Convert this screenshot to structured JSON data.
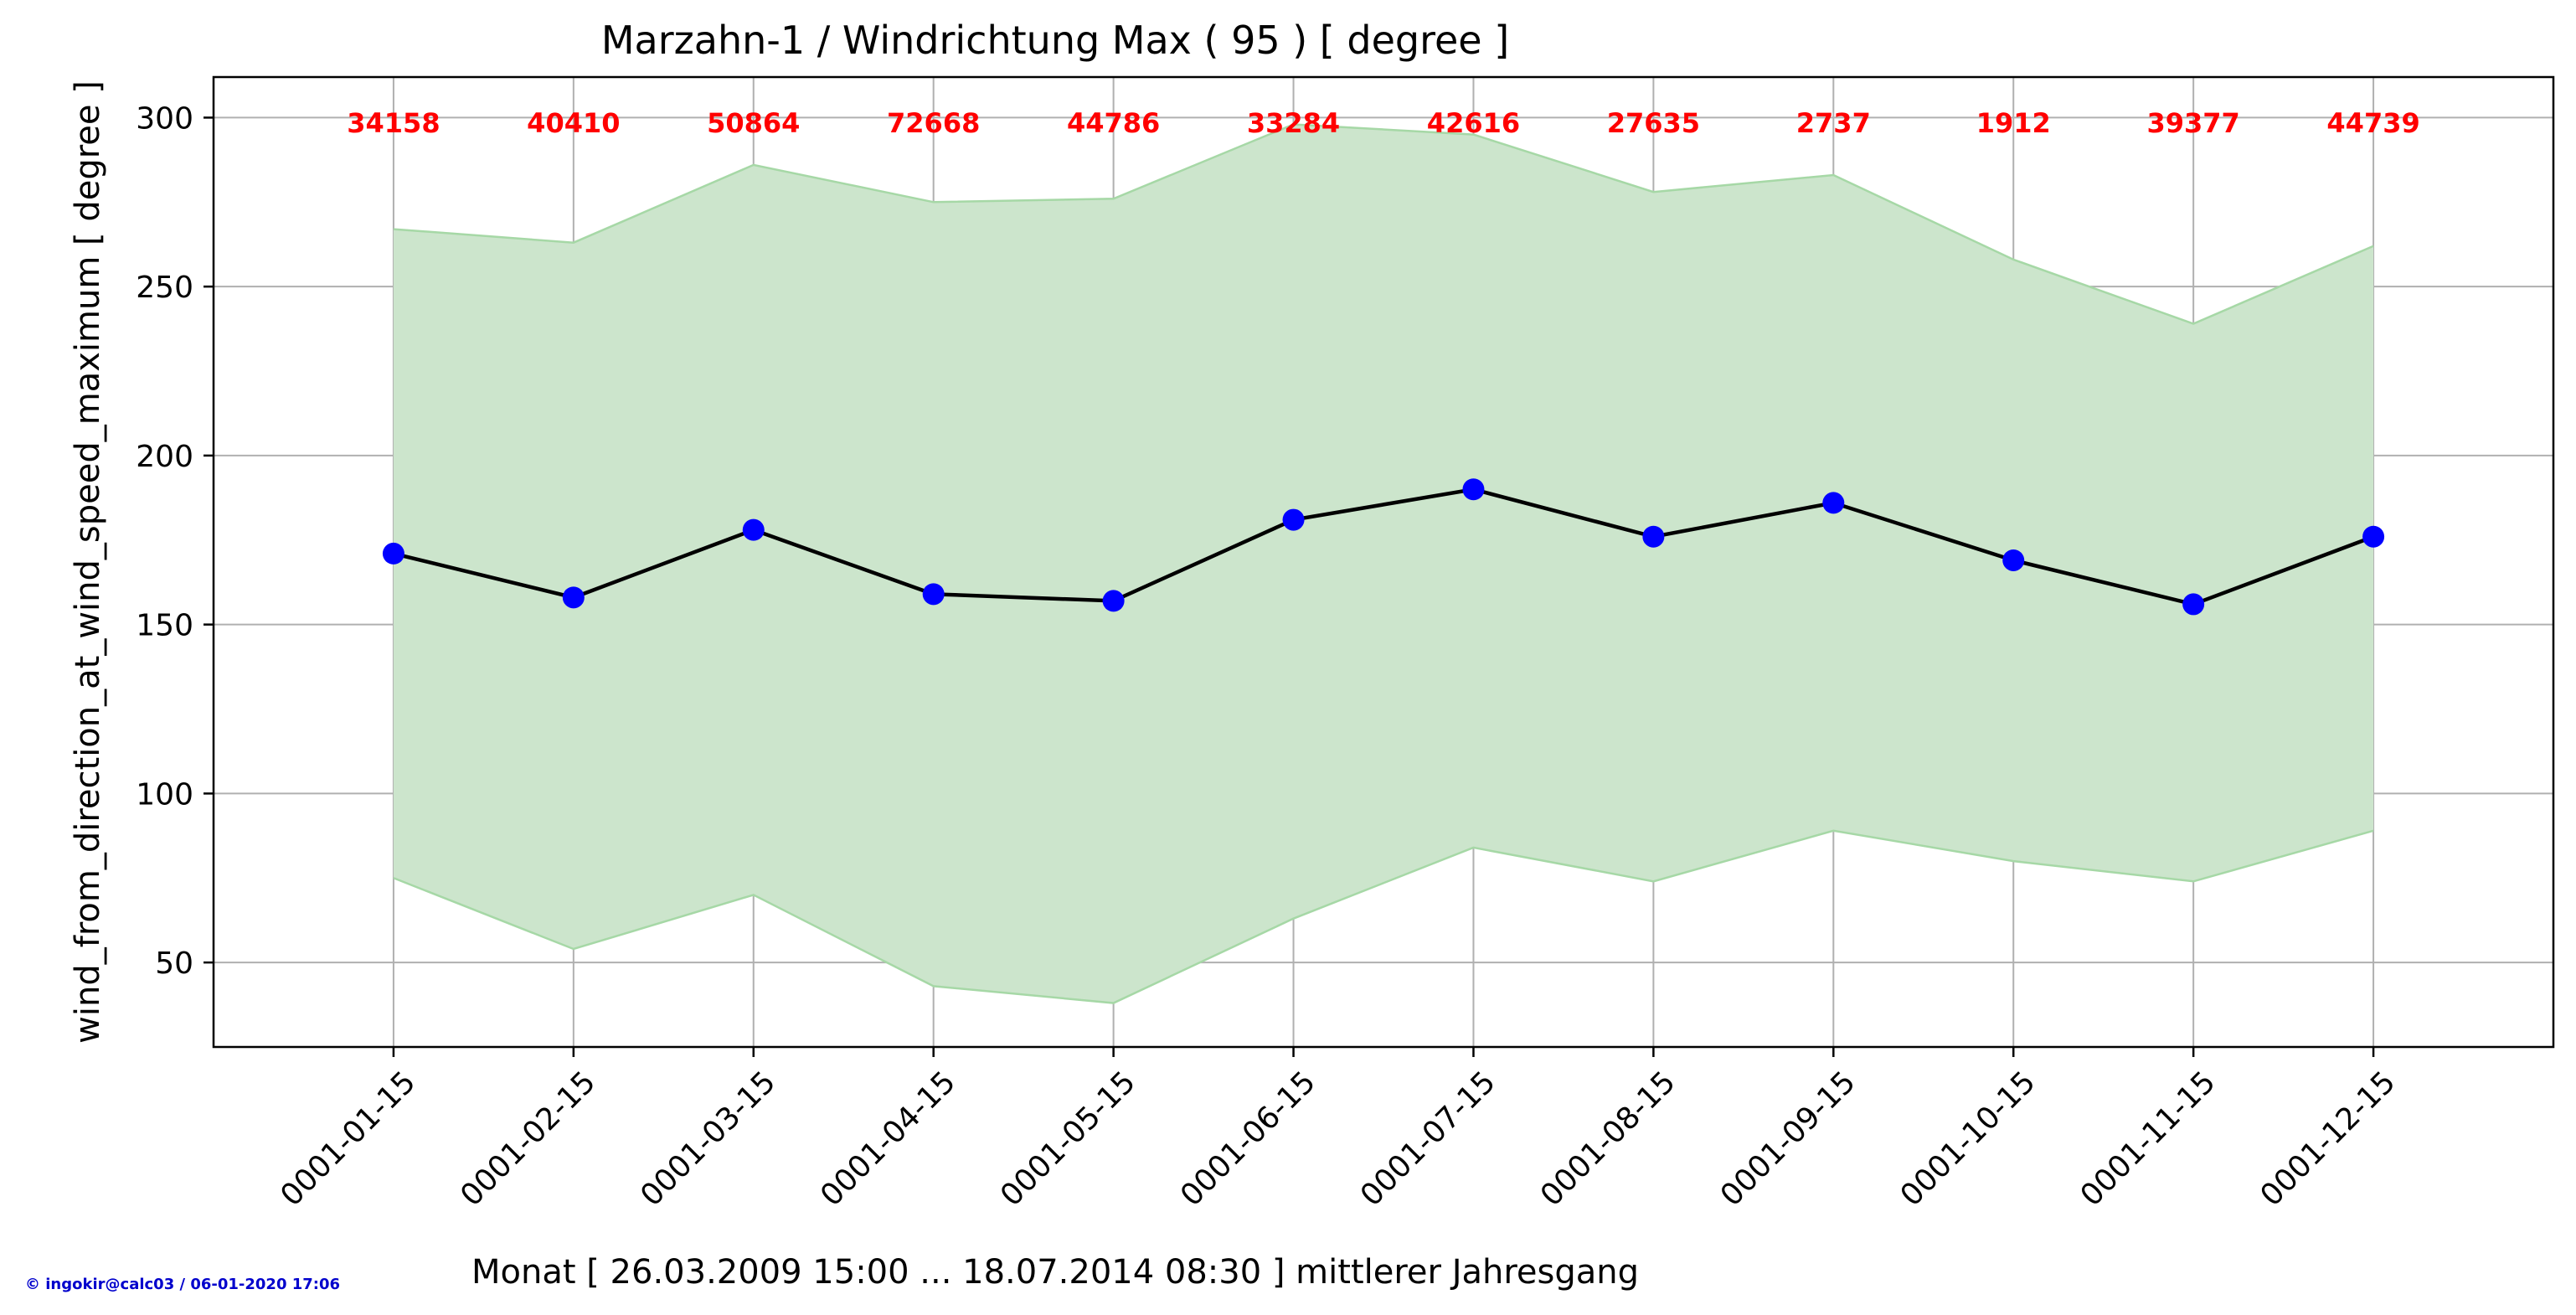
{
  "chart_data": {
    "type": "line",
    "title": "Marzahn-1 / Windrichtung Max ( 95 ) [ degree ]",
    "xlabel": "Monat [ 26.03.2009 15:00 ... 18.07.2014 08:30 ] mittlerer Jahresgang",
    "ylabel": "wind_from_direction_at_wind_speed_maximum [ degree ]",
    "categories": [
      "0001-01-15",
      "0001-02-15",
      "0001-03-15",
      "0001-04-15",
      "0001-05-15",
      "0001-06-15",
      "0001-07-15",
      "0001-08-15",
      "0001-09-15",
      "0001-10-15",
      "0001-11-15",
      "0001-12-15"
    ],
    "xlim_index": [
      -1,
      12
    ],
    "ylim": [
      25,
      312
    ],
    "yticks": [
      50,
      100,
      150,
      200,
      250,
      300
    ],
    "grid": true,
    "series": [
      {
        "values": [
          171,
          158,
          178,
          159,
          157,
          181,
          190,
          176,
          186,
          169,
          156,
          176
        ],
        "color": "#000000",
        "marker_color": "#0000ff"
      }
    ],
    "band": {
      "upper": [
        267,
        263,
        286,
        275,
        276,
        298,
        295,
        278,
        283,
        258,
        239,
        262
      ],
      "lower": [
        75,
        54,
        70,
        43,
        38,
        63,
        84,
        74,
        89,
        80,
        74,
        89
      ],
      "color": "#cce5cc",
      "edge_color": "#a6d8a6"
    },
    "counts": [
      "34158",
      "40410",
      "50864",
      "72668",
      "44786",
      "33284",
      "42616",
      "27635",
      "2737",
      "1912",
      "39377",
      "44739"
    ],
    "count_color": "#ff0000"
  },
  "footer": "© ingokir@calc03 / 06-01-2020 17:06"
}
